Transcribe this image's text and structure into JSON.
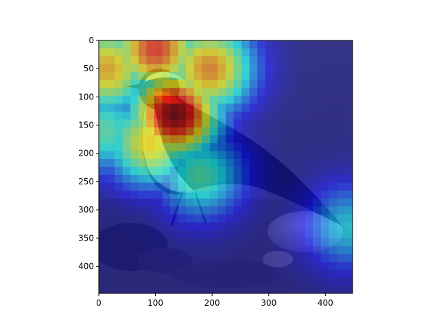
{
  "chart_data": {
    "type": "heatmap",
    "title": "",
    "xlabel": "",
    "ylabel": "",
    "xlim": [
      0,
      448
    ],
    "ylim": [
      448,
      0
    ],
    "x_ticks": [
      0,
      100,
      200,
      300,
      400
    ],
    "y_ticks": [
      0,
      50,
      100,
      150,
      200,
      250,
      300,
      350,
      400
    ],
    "x_tick_labels": [
      "0",
      "100",
      "200",
      "300",
      "400"
    ],
    "y_tick_labels": [
      "0",
      "50",
      "100",
      "150",
      "200",
      "250",
      "300",
      "350",
      "400"
    ],
    "colormap": "jet",
    "overlay_alpha": 0.5,
    "background_image": "bird-on-rocky-ground",
    "grid": false,
    "legend": "none",
    "heat_peaks": [
      {
        "x": 135,
        "y": 130,
        "intensity": 1.0
      },
      {
        "x": 100,
        "y": 15,
        "intensity": 0.85
      },
      {
        "x": 15,
        "y": 50,
        "intensity": 0.7
      },
      {
        "x": 195,
        "y": 50,
        "intensity": 0.75
      },
      {
        "x": 90,
        "y": 180,
        "intensity": 0.65
      },
      {
        "x": 10,
        "y": 160,
        "intensity": 0.45
      },
      {
        "x": 180,
        "y": 240,
        "intensity": 0.45
      },
      {
        "x": 440,
        "y": 330,
        "intensity": 0.35
      }
    ]
  }
}
